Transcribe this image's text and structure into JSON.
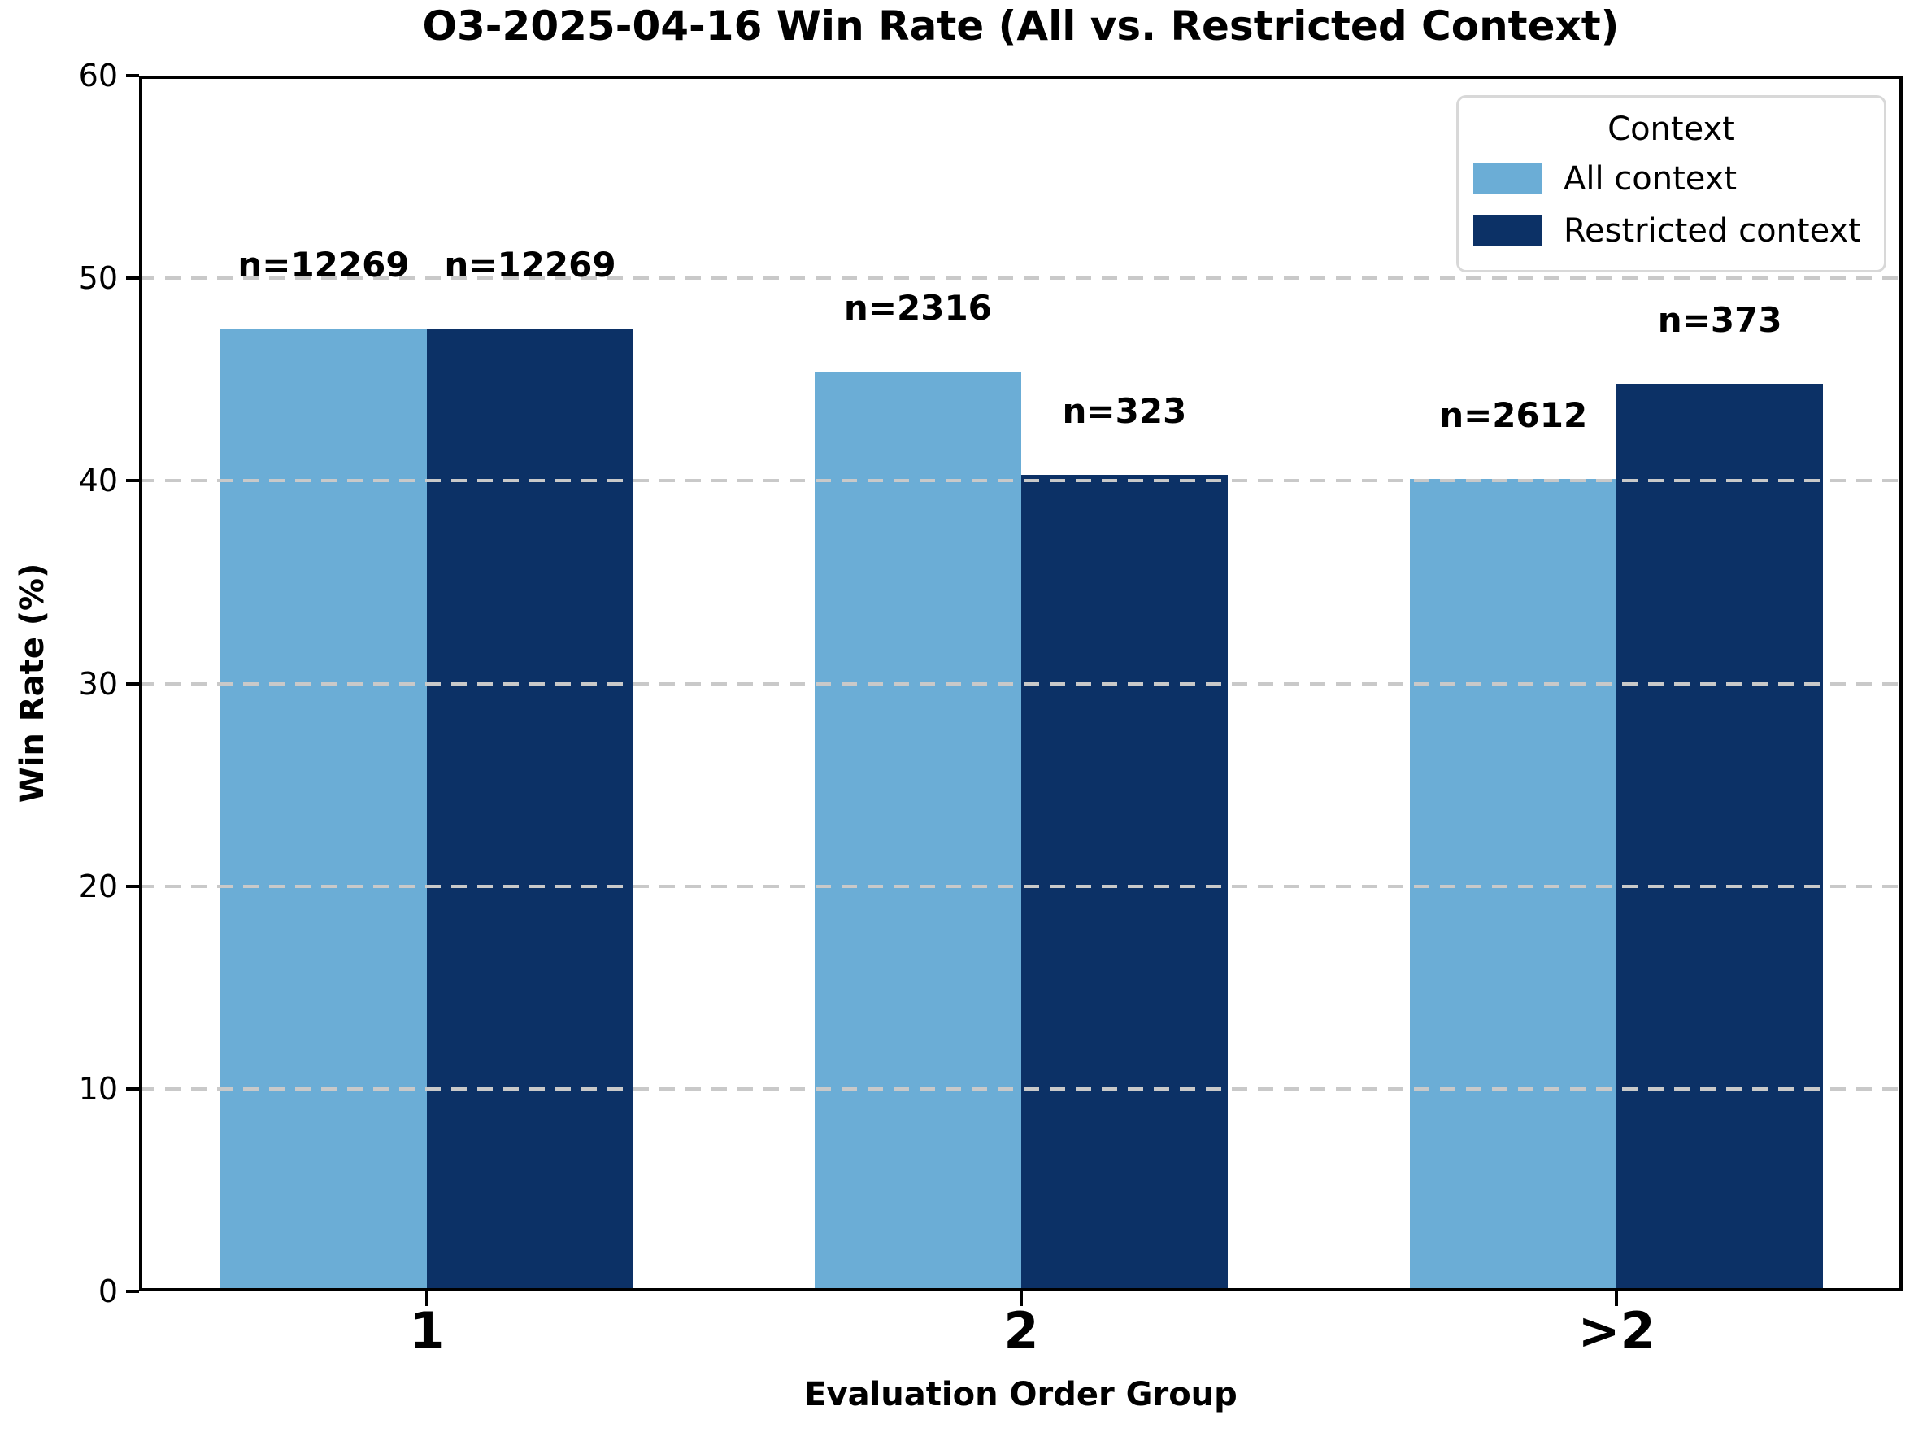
{
  "chart_data": {
    "type": "bar",
    "title": "O3-2025-04-16 Win Rate (All vs. Restricted Context)",
    "xlabel": "Evaluation Order Group",
    "ylabel": "Win Rate (%)",
    "categories": [
      "1",
      "2",
      ">2"
    ],
    "series": [
      {
        "name": "All context",
        "color": "#6BADD6",
        "values": [
          47.5,
          45.4,
          40.1
        ],
        "bar_labels": [
          "n=12269",
          "n=2316",
          "n=2612"
        ]
      },
      {
        "name": "Restricted context",
        "color": "#0C3166",
        "values": [
          47.5,
          40.3,
          44.8
        ],
        "bar_labels": [
          "n=12269",
          "n=323",
          "n=373"
        ]
      }
    ],
    "ylim": [
      0,
      60
    ],
    "yticks": [
      0,
      10,
      20,
      30,
      40,
      50,
      60
    ],
    "grid": {
      "axis": "y",
      "style": "dashed",
      "color": "#C9C9C9",
      "above_bars": true
    },
    "legend": {
      "title": "Context",
      "position": "upper right"
    }
  }
}
